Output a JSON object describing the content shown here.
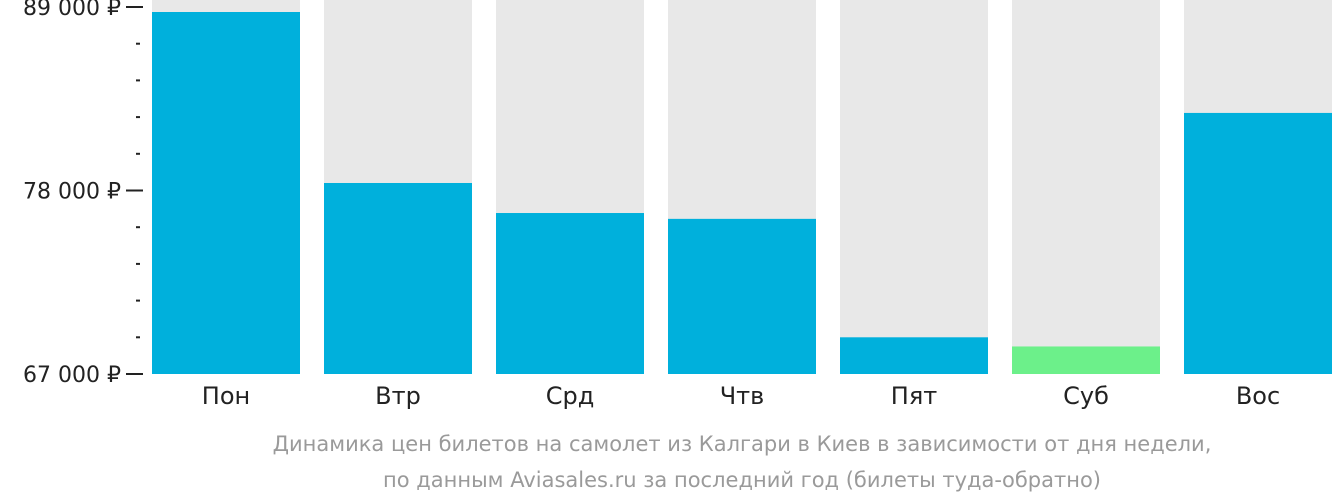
{
  "chart_data": {
    "type": "bar",
    "categories": [
      "Пон",
      "Втр",
      "Срд",
      "Чтв",
      "Пят",
      "Суб",
      "Вос"
    ],
    "values": [
      88700,
      78450,
      76650,
      76300,
      69200,
      68650,
      82650
    ],
    "ylim": [
      67000,
      89000
    ],
    "yticks": [
      {
        "value": 89000,
        "label": "89 000 ₽"
      },
      {
        "value": 78000,
        "label": "78 000 ₽"
      },
      {
        "value": 67000,
        "label": "67 000 ₽"
      }
    ],
    "minor_yticks": [
      86800,
      84600,
      82400,
      80200,
      75800,
      73600,
      71400,
      69200
    ],
    "grid": false,
    "legend": "none",
    "colors": {
      "bar": "#00b0dc",
      "bar_min": "#6cf08a",
      "background_column": "#e8e8e8",
      "axis": "#222222"
    },
    "highlighted_min_index": 5
  },
  "caption": {
    "line1": "Динамика цен билетов на самолет из Калгари в Киев в зависимости от дня недели,",
    "line2": "по данным Aviasales.ru за последний год (билеты туда-обратно)"
  }
}
